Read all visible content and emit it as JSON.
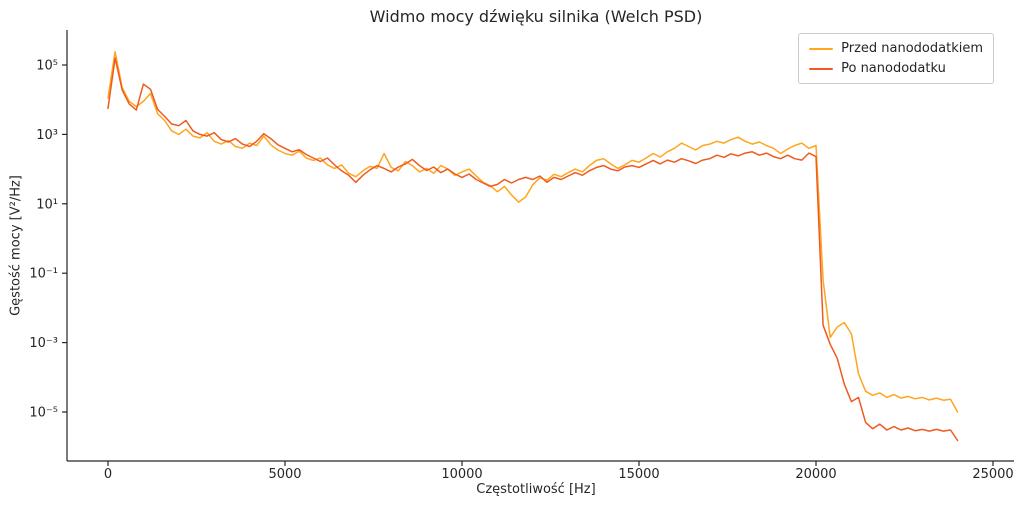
{
  "figure": {
    "background_color": "#ffffff",
    "text_color": "#262626",
    "spine_color": "#262626"
  },
  "chart_data": {
    "type": "line",
    "title": "Widmo mocy dźwięku silnika (Welch PSD)",
    "xlabel": "Częstotliwość [Hz]",
    "ylabel": "Gęstość mocy [V²/Hz]",
    "x_scale": "linear",
    "y_scale": "log",
    "x_unit": "Hz",
    "y_unit": "V²/Hz",
    "xlim": [
      -1160,
      25600
    ],
    "ylim_log10": [
      -6.4,
      6.0
    ],
    "grid": false,
    "legend_position": "upper right",
    "x_ticks": {
      "values": [
        0,
        5000,
        10000,
        15000,
        20000,
        25000
      ],
      "labels": [
        "0",
        "5000",
        "10000",
        "15000",
        "20000",
        "25000"
      ]
    },
    "y_ticks": {
      "exponents": [
        5,
        3,
        1,
        -1,
        -3,
        -5
      ],
      "labels": [
        "10⁵",
        "10³",
        "10¹",
        "10⁻¹",
        "10⁻³",
        "10⁻⁵"
      ]
    },
    "x_start": 0,
    "x_step": 200,
    "series": [
      {
        "name": "Przed nanododatkiem",
        "color": "#FFA51E",
        "log10_values": [
          4.05,
          5.38,
          4.35,
          3.95,
          3.8,
          3.95,
          4.18,
          3.6,
          3.4,
          3.1,
          3.0,
          3.15,
          2.95,
          2.9,
          3.05,
          2.8,
          2.72,
          2.82,
          2.65,
          2.6,
          2.75,
          2.68,
          2.95,
          2.7,
          2.55,
          2.45,
          2.4,
          2.52,
          2.32,
          2.25,
          2.32,
          2.12,
          2.02,
          2.12,
          1.88,
          1.78,
          1.95,
          2.08,
          2.02,
          2.45,
          2.05,
          1.95,
          2.22,
          2.1,
          1.92,
          2.02,
          1.88,
          2.1,
          2.0,
          1.82,
          1.92,
          2.0,
          1.8,
          1.62,
          1.52,
          1.35,
          1.5,
          1.25,
          1.05,
          1.2,
          1.55,
          1.75,
          1.68,
          1.85,
          1.78,
          1.9,
          2.0,
          1.92,
          2.1,
          2.25,
          2.3,
          2.15,
          2.02,
          2.12,
          2.25,
          2.2,
          2.32,
          2.45,
          2.35,
          2.5,
          2.6,
          2.75,
          2.65,
          2.55,
          2.68,
          2.72,
          2.8,
          2.75,
          2.85,
          2.92,
          2.8,
          2.72,
          2.78,
          2.68,
          2.6,
          2.45,
          2.58,
          2.68,
          2.75,
          2.6,
          2.68,
          -1.2,
          -2.85,
          -2.55,
          -2.42,
          -2.75,
          -3.9,
          -4.4,
          -4.52,
          -4.45,
          -4.58,
          -4.5,
          -4.6,
          -4.55,
          -4.62,
          -4.58,
          -4.65,
          -4.6,
          -4.66,
          -4.63,
          -5.0
        ]
      },
      {
        "name": "Po nanododatku",
        "color": "#EE5B20",
        "log10_values": [
          3.75,
          5.2,
          4.28,
          3.88,
          3.7,
          4.45,
          4.3,
          3.72,
          3.52,
          3.3,
          3.25,
          3.4,
          3.1,
          3.0,
          2.95,
          3.05,
          2.85,
          2.78,
          2.88,
          2.72,
          2.65,
          2.8,
          3.02,
          2.88,
          2.7,
          2.6,
          2.5,
          2.56,
          2.42,
          2.32,
          2.22,
          2.32,
          2.12,
          1.95,
          1.82,
          1.62,
          1.82,
          1.98,
          2.1,
          2.02,
          1.92,
          2.06,
          2.15,
          2.28,
          2.1,
          1.96,
          2.06,
          1.9,
          2.0,
          1.86,
          1.76,
          1.86,
          1.7,
          1.6,
          1.5,
          1.56,
          1.7,
          1.6,
          1.7,
          1.76,
          1.7,
          1.8,
          1.62,
          1.76,
          1.7,
          1.8,
          1.9,
          1.82,
          1.95,
          2.05,
          2.1,
          2.0,
          1.95,
          2.06,
          2.1,
          2.05,
          2.15,
          2.25,
          2.15,
          2.26,
          2.2,
          2.3,
          2.24,
          2.16,
          2.26,
          2.3,
          2.4,
          2.34,
          2.44,
          2.38,
          2.46,
          2.5,
          2.4,
          2.46,
          2.36,
          2.3,
          2.4,
          2.3,
          2.26,
          2.46,
          2.36,
          -2.5,
          -3.05,
          -3.45,
          -4.2,
          -4.7,
          -4.58,
          -5.3,
          -5.48,
          -5.35,
          -5.52,
          -5.42,
          -5.52,
          -5.46,
          -5.54,
          -5.5,
          -5.55,
          -5.5,
          -5.55,
          -5.52,
          -5.82
        ]
      }
    ]
  }
}
